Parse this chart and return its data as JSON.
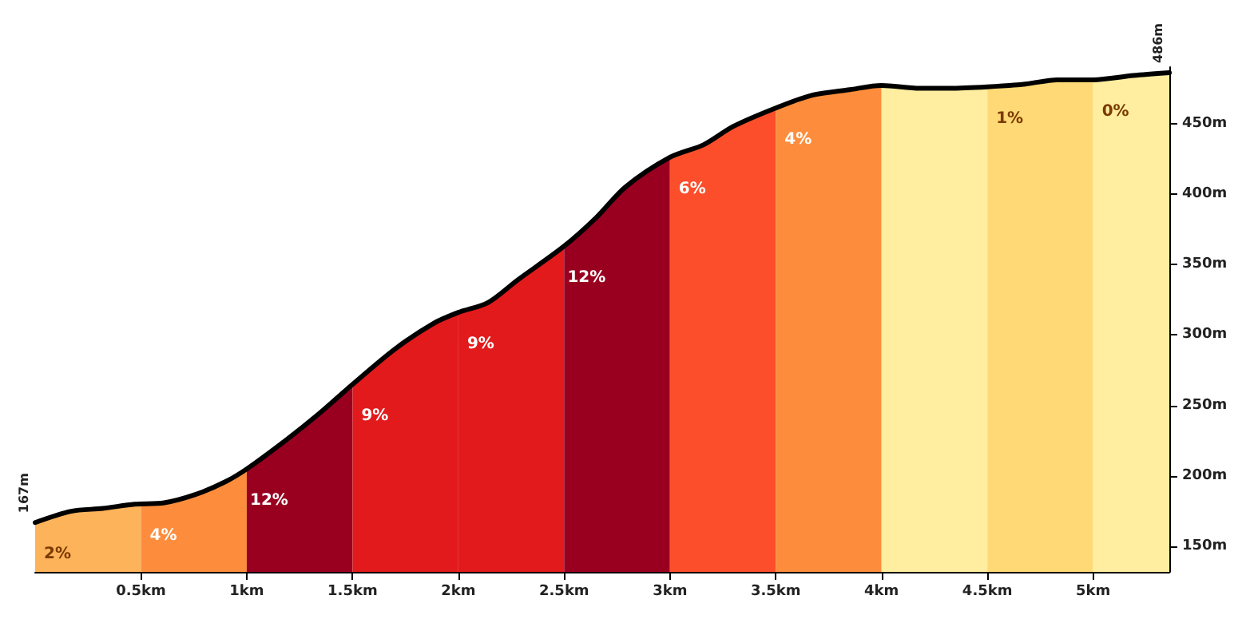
{
  "chart_data": {
    "type": "area",
    "xlim": [
      0,
      5.36
    ],
    "ylim": [
      132,
      490
    ],
    "xticks": [
      {
        "value": 0.5,
        "label": "0.5km"
      },
      {
        "value": 1,
        "label": "1km"
      },
      {
        "value": 1.5,
        "label": "1.5km"
      },
      {
        "value": 2,
        "label": "2km"
      },
      {
        "value": 2.5,
        "label": "2.5km"
      },
      {
        "value": 3,
        "label": "3km"
      },
      {
        "value": 3.5,
        "label": "3.5km"
      },
      {
        "value": 4,
        "label": "4km"
      },
      {
        "value": 4.5,
        "label": "4.5km"
      },
      {
        "value": 5,
        "label": "5km"
      }
    ],
    "yticks": [
      {
        "value": 150,
        "label": "150m"
      },
      {
        "value": 200,
        "label": "200m"
      },
      {
        "value": 250,
        "label": "250m"
      },
      {
        "value": 300,
        "label": "300m"
      },
      {
        "value": 350,
        "label": "350m"
      },
      {
        "value": 400,
        "label": "400m"
      },
      {
        "value": 450,
        "label": "450m"
      }
    ],
    "grid": false,
    "legend": false,
    "marker": "none",
    "line_style": "solid",
    "annotations": [
      {
        "text": "167m",
        "x": 0,
        "y": 167
      },
      {
        "text": "486m",
        "x": 5.36,
        "y": 486
      }
    ],
    "series": [
      {
        "name": "2%",
        "color": "#fdb35a",
        "x": [
          0,
          0.17,
          0.32,
          0.47,
          0.5
        ],
        "values": [
          167,
          175,
          177,
          180,
          180
        ]
      },
      {
        "name": "4%",
        "color": "#fd8d3c",
        "x": [
          0.5,
          0.61,
          0.76,
          0.9,
          1.0
        ],
        "values": [
          180,
          181,
          187,
          196,
          205
        ]
      },
      {
        "name": "12%",
        "color": "#990020",
        "x": [
          1.0,
          1.19,
          1.34,
          1.5
        ],
        "values": [
          205,
          226,
          244,
          265
        ]
      },
      {
        "name": "9%",
        "color": "#e31a1c",
        "x": [
          1.5,
          1.7,
          1.88,
          2.0
        ],
        "values": [
          265,
          290,
          308,
          316
        ]
      },
      {
        "name": "9%",
        "color": "#e31a1c",
        "x": [
          2.0,
          2.14,
          2.28,
          2.5
        ],
        "values": [
          316,
          323,
          339,
          363
        ]
      },
      {
        "name": "12%",
        "color": "#990020",
        "x": [
          2.5,
          2.65,
          2.79,
          3.0
        ],
        "values": [
          363,
          383,
          405,
          426
        ]
      },
      {
        "name": "6%",
        "color": "#fc4e2a",
        "x": [
          3.0,
          3.16,
          3.3,
          3.5
        ],
        "values": [
          426,
          435,
          448,
          461
        ]
      },
      {
        "name": "4%",
        "color": "#fd8d3c",
        "x": [
          3.5,
          3.67,
          3.85,
          4.0
        ],
        "values": [
          461,
          470,
          474,
          477
        ]
      },
      {
        "color": "#ffeda0",
        "x": [
          4.0,
          4.18,
          4.32,
          4.5
        ],
        "values": [
          477,
          475,
          475,
          476
        ]
      },
      {
        "name": "1%",
        "color": "#fed976",
        "x": [
          4.5,
          4.68,
          4.83,
          5.0
        ],
        "values": [
          476,
          478,
          481,
          481
        ]
      },
      {
        "name": "0%",
        "color": "#ffeda0",
        "x": [
          5.0,
          5.19,
          5.36
        ],
        "values": [
          481,
          484,
          486
        ]
      },
      {
        "type": "line",
        "color": "#000000",
        "x": [
          0,
          0.17,
          0.32,
          0.47,
          0.61,
          0.76,
          0.9,
          1.0,
          1.19,
          1.34,
          1.5,
          1.7,
          1.88,
          2.0,
          2.14,
          2.28,
          2.5,
          2.65,
          2.79,
          3.0,
          3.16,
          3.3,
          3.5,
          3.67,
          3.85,
          4.0,
          4.18,
          4.32,
          4.5,
          4.68,
          4.83,
          5.0,
          5.19,
          5.36
        ],
        "values": [
          167,
          175,
          177,
          180,
          181,
          187,
          196,
          205,
          226,
          244,
          265,
          290,
          308,
          316,
          323,
          339,
          363,
          383,
          405,
          426,
          435,
          448,
          461,
          470,
          474,
          477,
          475,
          475,
          476,
          478,
          481,
          481,
          484,
          486
        ]
      }
    ]
  }
}
